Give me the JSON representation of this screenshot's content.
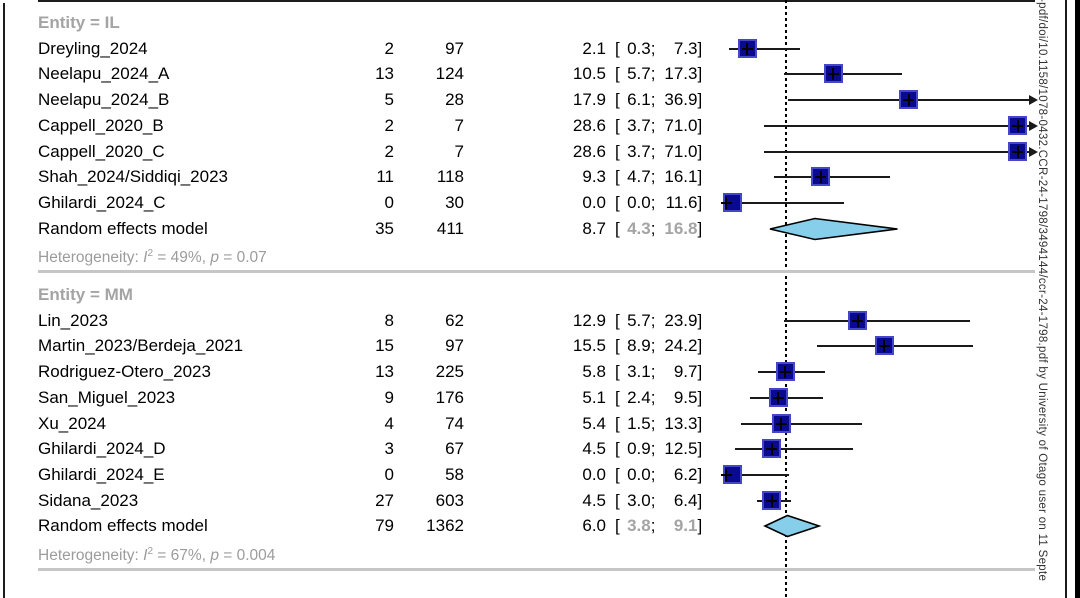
{
  "watermark": {
    "text": "-pdf/doi/10.1158/1078-0432.CCR-24-1798/3494144/ccr-24-1798.pdf by University of Otago user on 11 Septe"
  },
  "terms": {
    "heterogeneity_label": "Heterogeneity:",
    "i_symbol": "I",
    "i_exponent": "2",
    "p_symbol": "p"
  },
  "colors": {
    "square_fill": "#0a0a91",
    "square_border": "#4646c8",
    "diamond_fill": "#87ceeb",
    "diamond_border": "#000000",
    "group_gray": "#a4a4a4",
    "het_gray": "#9c9c9c",
    "divider_gray": "#c6c6c6",
    "line_black": "#1a1a1a"
  },
  "chart_data": {
    "type": "forest",
    "x_axis": {
      "min": 0,
      "max": 30,
      "dashed_reference_value": 5.85,
      "arrows_beyond_max": true
    },
    "columns_meaning": [
      "study",
      "events",
      "total",
      "proportion_pct",
      "95pct_CI"
    ],
    "groups": [
      {
        "label": "Entity = IL",
        "studies": [
          {
            "name": "Dreyling_2024",
            "events": "2",
            "total": "97",
            "est": "2.1",
            "low": "0.3",
            "high": "7.3"
          },
          {
            "name": "Neelapu_2024_A",
            "events": "13",
            "total": "124",
            "est": "10.5",
            "low": "5.7",
            "high": "17.3"
          },
          {
            "name": "Neelapu_2024_B",
            "events": "5",
            "total": "28",
            "est": "17.9",
            "low": "6.1",
            "high": "36.9"
          },
          {
            "name": "Cappell_2020_B",
            "events": "2",
            "total": "7",
            "est": "28.6",
            "low": "3.7",
            "high": "71.0"
          },
          {
            "name": "Cappell_2020_C",
            "events": "2",
            "total": "7",
            "est": "28.6",
            "low": "3.7",
            "high": "71.0"
          },
          {
            "name": "Shah_2024/Siddiqi_2023",
            "events": "11",
            "total": "118",
            "est": "9.3",
            "low": "4.7",
            "high": "16.1"
          },
          {
            "name": "Ghilardi_2024_C",
            "events": "0",
            "total": "30",
            "est": "0.0",
            "low": "0.0",
            "high": "11.6"
          }
        ],
        "summary": {
          "name": "Random effects model",
          "events": "35",
          "total": "411",
          "est": "8.7",
          "low": "4.3",
          "high": "16.8"
        },
        "heterogeneity": {
          "i2": "49%",
          "p": "0.07"
        }
      },
      {
        "label": "Entity = MM",
        "studies": [
          {
            "name": "Lin_2023",
            "events": "8",
            "total": "62",
            "est": "12.9",
            "low": "5.7",
            "high": "23.9"
          },
          {
            "name": "Martin_2023/Berdeja_2021",
            "events": "15",
            "total": "97",
            "est": "15.5",
            "low": "8.9",
            "high": "24.2"
          },
          {
            "name": "Rodriguez-Otero_2023",
            "events": "13",
            "total": "225",
            "est": "5.8",
            "low": "3.1",
            "high": "9.7"
          },
          {
            "name": "San_Miguel_2023",
            "events": "9",
            "total": "176",
            "est": "5.1",
            "low": "2.4",
            "high": "9.5"
          },
          {
            "name": "Xu_2024",
            "events": "4",
            "total": "74",
            "est": "5.4",
            "low": "1.5",
            "high": "13.3"
          },
          {
            "name": "Ghilardi_2024_D",
            "events": "3",
            "total": "67",
            "est": "4.5",
            "low": "0.9",
            "high": "12.5"
          },
          {
            "name": "Ghilardi_2024_E",
            "events": "0",
            "total": "58",
            "est": "0.0",
            "low": "0.0",
            "high": "6.2"
          },
          {
            "name": "Sidana_2023",
            "events": "27",
            "total": "603",
            "est": "4.5",
            "low": "3.0",
            "high": "6.4"
          }
        ],
        "summary": {
          "name": "Random effects model",
          "events": "79",
          "total": "1362",
          "est": "6.0",
          "low": "3.8",
          "high": "9.1"
        },
        "heterogeneity": {
          "i2": "67%",
          "p": "0.004"
        }
      }
    ]
  }
}
